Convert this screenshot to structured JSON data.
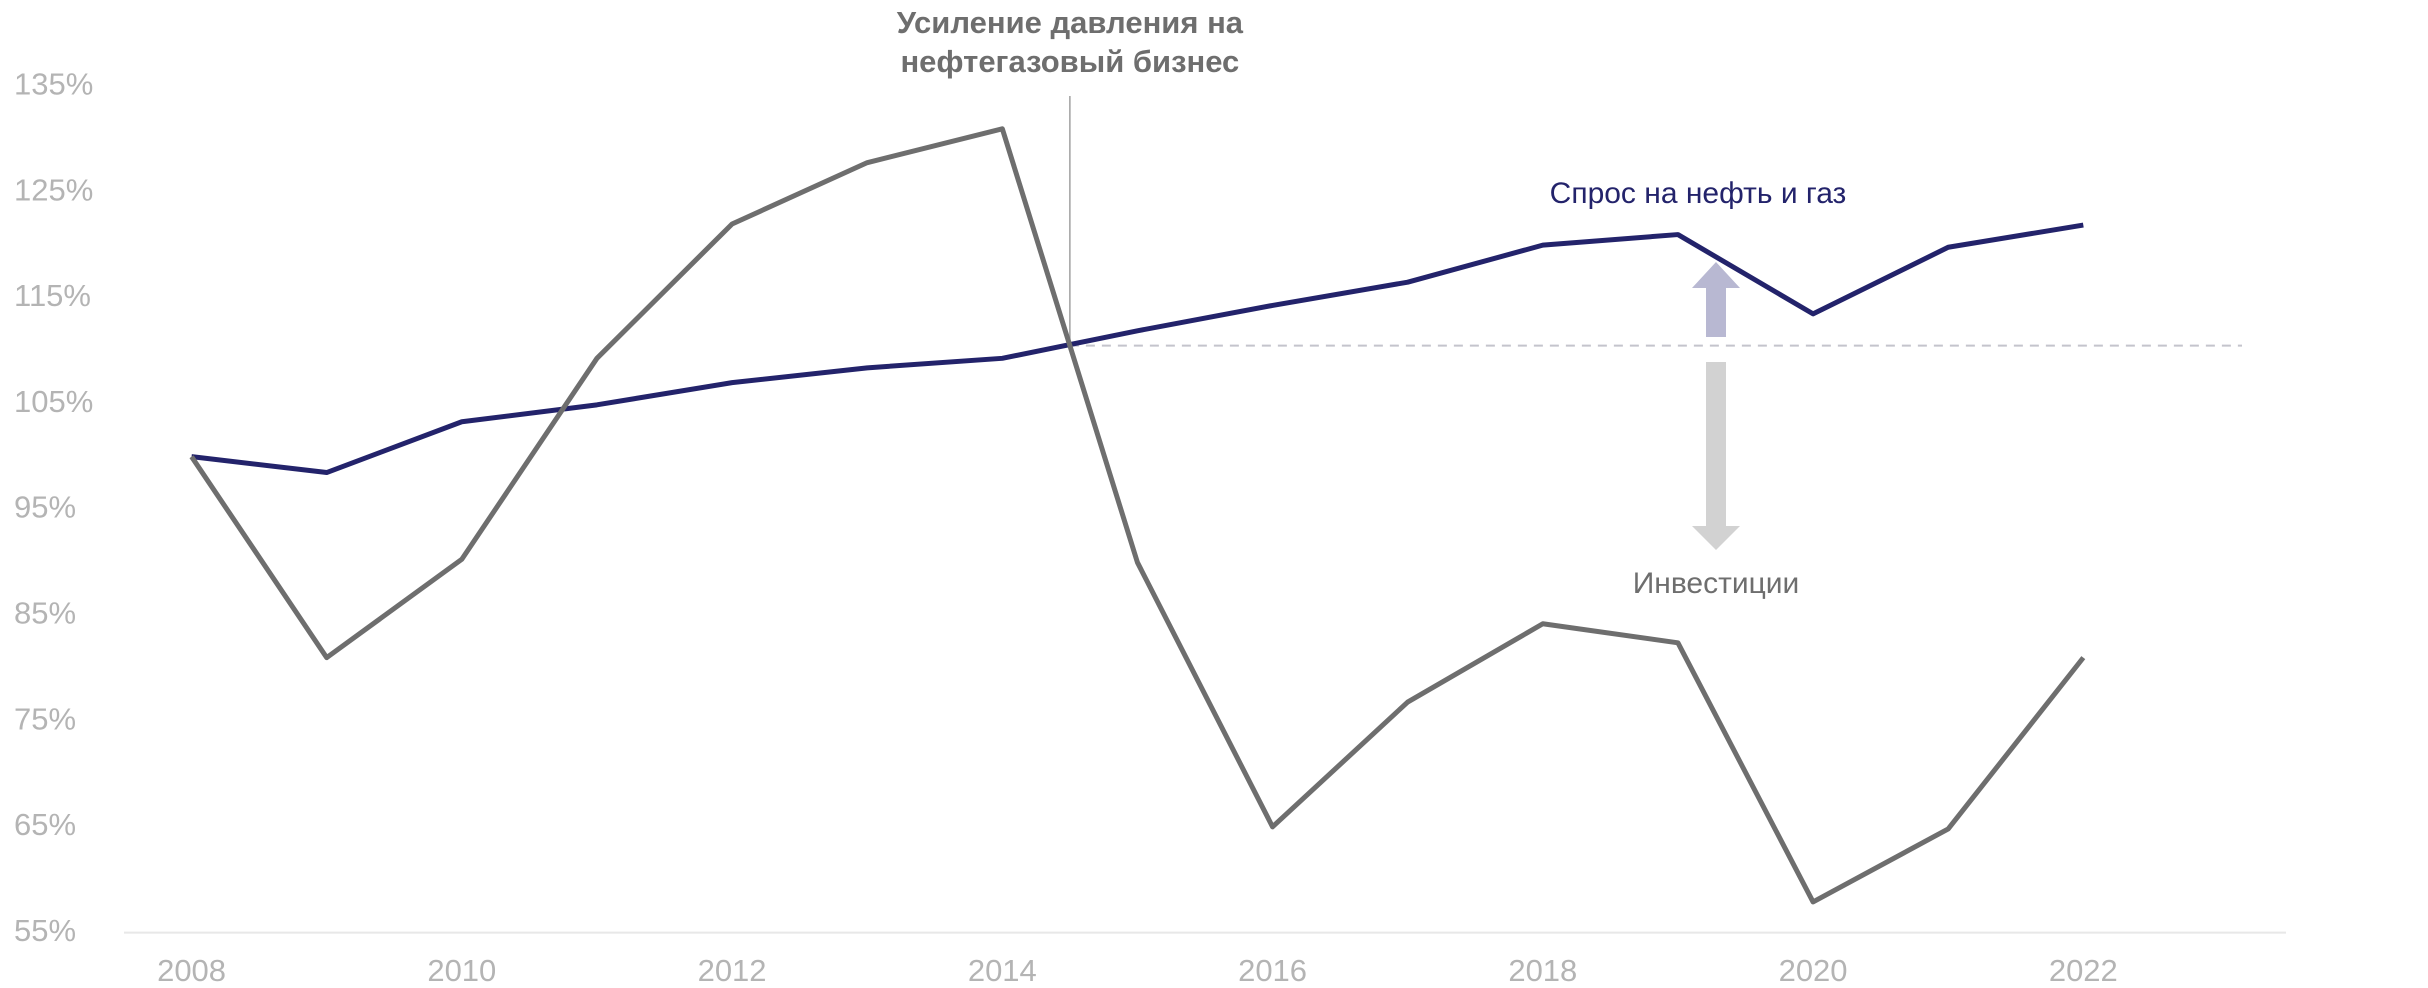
{
  "chart_data": {
    "type": "line",
    "annotation": {
      "lines": [
        "Усиление давления на",
        "нефтегазовый бизнес"
      ],
      "x": 2014.5,
      "level": 110.5
    },
    "x": [
      2008,
      2009,
      2010,
      2011,
      2012,
      2013,
      2014,
      2015,
      2016,
      2017,
      2018,
      2019,
      2020,
      2021,
      2022
    ],
    "series": [
      {
        "name": "Спрос на нефть и газ",
        "color": "#23236b",
        "values": [
          100,
          98.5,
          103.3,
          104.9,
          107,
          108.4,
          109.3,
          111.9,
          114.3,
          116.5,
          120,
          121,
          113.5,
          119.8,
          121.9
        ]
      },
      {
        "name": "Инвестиции",
        "color": "#6e6e6e",
        "values": [
          100,
          81,
          90.3,
          109.3,
          122,
          127.8,
          131,
          90,
          65,
          76.8,
          84.2,
          82.4,
          57.9,
          64.8,
          81
        ]
      }
    ],
    "xlim": [
      2007.5,
      2023.5
    ],
    "xticks": [
      2008,
      2010,
      2012,
      2014,
      2016,
      2018,
      2020,
      2022
    ],
    "ylim": [
      55,
      135
    ],
    "yticks": [
      {
        "value": 55,
        "label": "55%"
      },
      {
        "value": 65,
        "label": "65%"
      },
      {
        "value": 75,
        "label": "75%"
      },
      {
        "value": 85,
        "label": "85%"
      },
      {
        "value": 95,
        "label": "95%"
      },
      {
        "value": 105,
        "label": "105%"
      },
      {
        "value": 115,
        "label": "115%"
      },
      {
        "value": 125,
        "label": "125%"
      },
      {
        "value": 135,
        "label": "135%"
      }
    ],
    "grid": false
  }
}
